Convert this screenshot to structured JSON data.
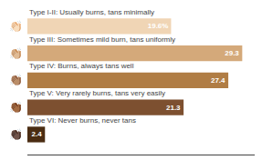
{
  "chart_data": {
    "type": "bar",
    "orientation": "horizontal",
    "categories": [
      "Type I-II: Usually burns, tans minimally",
      "Type III: Sometimes mild burn, tans uniformly",
      "Type IV: Burns, always tans well",
      "Type V: Very rarely burns, tans very easily",
      "Type VI: Never burns, never tans"
    ],
    "values": [
      19.6,
      29.3,
      27.4,
      21.3,
      2.4
    ],
    "value_labels": [
      "19.6%",
      "29.3",
      "27.4",
      "21.3",
      "2.4"
    ],
    "data_labels": true,
    "colors": [
      "#f0d5b5",
      "#d4a97a",
      "#b07d45",
      "#7d5030",
      "#4a2c12"
    ],
    "xlim": [
      0,
      31
    ],
    "tick_labels": false,
    "annotations": [
      {
        "text": "👏🏻",
        "category": "Type I-II: Usually burns, tans minimally"
      },
      {
        "text": "👏🏼",
        "category": "Type III: Sometimes mild burn, tans uniformly"
      },
      {
        "text": "👏🏽",
        "category": "Type IV: Burns, always tans well"
      },
      {
        "text": "👏🏾",
        "category": "Type V: Very rarely burns, tans very easily"
      },
      {
        "text": "👏🏿",
        "category": "Type VI: Never burns, never tans"
      }
    ]
  }
}
